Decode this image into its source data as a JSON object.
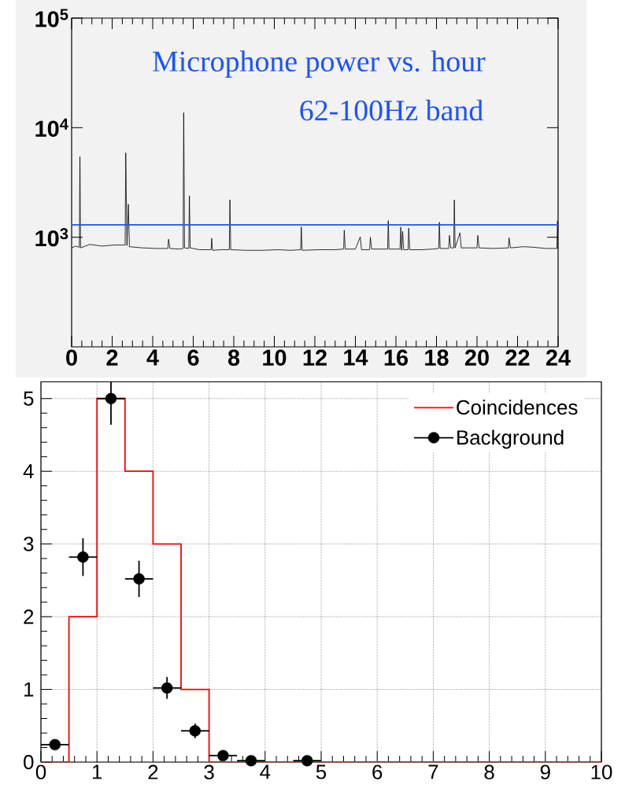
{
  "chart_data": [
    {
      "type": "line",
      "color": "#000000",
      "log": "y",
      "xlim": [
        0,
        24
      ],
      "ylim": [
        100,
        100000
      ],
      "xticks": [
        0,
        2,
        4,
        6,
        8,
        10,
        12,
        14,
        16,
        18,
        20,
        22,
        24
      ],
      "yticks": [
        {
          "value": 1000,
          "label": "10$^{3}$"
        },
        {
          "value": 10000,
          "label": "10$^{4}$"
        },
        {
          "value": 100000,
          "label": "10$^{5}$"
        }
      ],
      "x": [
        0,
        0.2,
        0.38,
        0.41,
        0.44,
        0.9,
        1.5,
        2.1,
        2.64,
        2.67,
        2.73,
        2.8,
        2.85,
        3.5,
        4.2,
        4.75,
        4.78,
        4.85,
        5.3,
        5.5,
        5.53,
        5.57,
        5.78,
        5.81,
        5.85,
        6.3,
        6.88,
        6.91,
        6.95,
        7.4,
        7.78,
        7.81,
        7.85,
        8.6,
        9.4,
        10.2,
        10.8,
        11.3,
        11.33,
        11.37,
        12.2,
        13.0,
        13.42,
        13.45,
        13.5,
        14.0,
        14.24,
        14.3,
        14.7,
        14.74,
        14.8,
        15.2,
        15.59,
        15.62,
        15.66,
        16.2,
        16.24,
        16.28,
        16.33,
        16.38,
        16.6,
        16.63,
        16.68,
        17.3,
        17.8,
        18.11,
        18.14,
        18.18,
        18.6,
        18.64,
        18.7,
        18.85,
        18.88,
        18.92,
        19.16,
        19.22,
        20.0,
        20.04,
        20.1,
        20.8,
        21.55,
        21.58,
        21.65,
        22.3,
        22.8,
        23.4,
        23.94,
        23.97,
        24
      ],
      "values": [
        800,
        830,
        810,
        5450,
        800,
        860,
        830,
        850,
        850,
        5900,
        840,
        2000,
        820,
        800,
        790,
        790,
        960,
        790,
        780,
        790,
        13700,
        800,
        790,
        2390,
        800,
        770,
        770,
        980,
        760,
        770,
        770,
        2200,
        770,
        760,
        760,
        770,
        760,
        770,
        1240,
        760,
        770,
        770,
        780,
        1160,
        780,
        780,
        1010,
        770,
        770,
        1000,
        780,
        780,
        780,
        1420,
        780,
        780,
        1240,
        760,
        1130,
        770,
        770,
        1210,
        770,
        770,
        780,
        790,
        1370,
        790,
        790,
        1040,
        800,
        800,
        2190,
        800,
        1100,
        800,
        800,
        1040,
        800,
        790,
        800,
        990,
        800,
        820,
        810,
        790,
        790,
        1410,
        790
      ],
      "ref_lines": [
        {
          "axis": "y",
          "value": 1300,
          "color": "#1a53ff"
        }
      ],
      "annotations": [
        "Microphone power vs. hour",
        "62-100Hz band"
      ]
    },
    {
      "type": "histogram",
      "xlim": [
        0,
        10
      ],
      "ylim": [
        0,
        5.23
      ],
      "xticks": [
        0,
        1,
        2,
        3,
        4,
        5,
        6,
        7,
        8,
        9,
        10
      ],
      "yticks": [
        0,
        1,
        2,
        3,
        4,
        5
      ],
      "grid": true,
      "legend": "top right",
      "marker": "circle",
      "bins": [
        0,
        0.5,
        1,
        1.5,
        2,
        2.5,
        3,
        3.5,
        4,
        4.5,
        5,
        5.5,
        6,
        6.5,
        7,
        7.5,
        8,
        8.5,
        9,
        9.5,
        10
      ],
      "series": [
        {
          "name": "Coincidences",
          "color": "#ff0000",
          "values": [
            0,
            2,
            5,
            4,
            3,
            1,
            0,
            0,
            0,
            0,
            0,
            0,
            0,
            0,
            0,
            0,
            0,
            0,
            0,
            0
          ]
        },
        {
          "name": "Background",
          "type": "scatter",
          "color": "#000000",
          "x": [
            0.25,
            0.75,
            1.25,
            1.75,
            2.25,
            2.75,
            3.25,
            3.75,
            4.75
          ],
          "values": [
            0.24,
            2.82,
            5.0,
            2.52,
            1.02,
            0.43,
            0.09,
            0.02,
            0.02
          ],
          "errors": [
            0.05,
            0.26,
            [
              4.64,
              5.23
            ],
            0.25,
            0.15,
            0.1,
            0.03,
            null,
            null
          ],
          "xerrors": [
            0.25,
            0.25,
            0.25,
            0.25,
            0.25,
            0.25,
            0.25,
            0.25,
            0.25
          ]
        }
      ]
    }
  ]
}
